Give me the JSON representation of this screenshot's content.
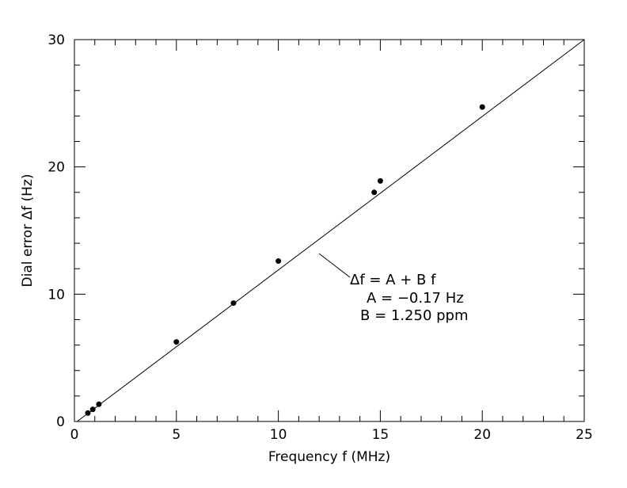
{
  "chart_data": {
    "type": "scatter",
    "xlabel": "Frequency f (MHz)",
    "ylabel": "Dial error Δf (Hz)",
    "xlim": [
      0,
      25
    ],
    "ylim": [
      0,
      30
    ],
    "x_major_ticks": [
      0,
      5,
      10,
      15,
      20,
      25
    ],
    "y_major_ticks": [
      0,
      10,
      20,
      30
    ],
    "x_minor_step": 1,
    "y_minor_step": 2,
    "grid": false,
    "points": [
      {
        "x": 0.66,
        "y": 0.66
      },
      {
        "x": 0.9,
        "y": 0.95
      },
      {
        "x": 1.2,
        "y": 1.35
      },
      {
        "x": 5.0,
        "y": 6.25
      },
      {
        "x": 7.8,
        "y": 9.3
      },
      {
        "x": 10.0,
        "y": 12.6
      },
      {
        "x": 14.7,
        "y": 18.0
      },
      {
        "x": 15.0,
        "y": 18.9
      },
      {
        "x": 20.0,
        "y": 24.7
      }
    ],
    "fit": {
      "A": -0.17,
      "B": 1.25
    },
    "annotation": {
      "lines": [
        "Δf = A + B f",
        "A = −0.17 Hz",
        "B = 1.250 ppm"
      ]
    },
    "colors": {
      "marks": "#000000",
      "background": "#ffffff"
    }
  }
}
